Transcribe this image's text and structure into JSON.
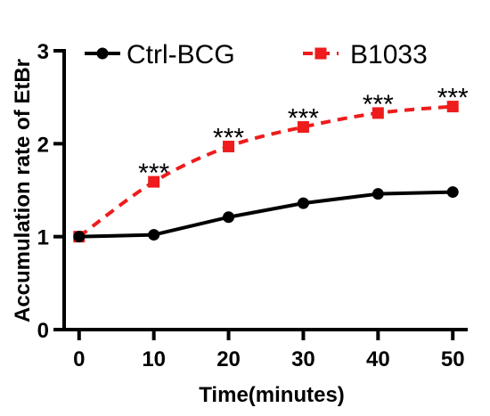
{
  "chart_data": {
    "type": "line",
    "title": "",
    "xlabel": "Time(minutes)",
    "ylabel": "Accumulation rate of EtBr",
    "x": [
      0,
      10,
      20,
      30,
      40,
      50
    ],
    "xlim": [
      -2,
      52
    ],
    "ylim": [
      0,
      3
    ],
    "xticks": [
      "0",
      "10",
      "20",
      "30",
      "40",
      "50"
    ],
    "yticks": [
      "0",
      "1",
      "2",
      "3"
    ],
    "grid": false,
    "legend_position": "top",
    "series": [
      {
        "name": "Ctrl-BCG",
        "values": [
          1.0,
          1.02,
          1.21,
          1.36,
          1.46,
          1.48
        ],
        "color": "#000000",
        "marker": "circle",
        "line_style": "solid"
      },
      {
        "name": "B1033",
        "values": [
          1.0,
          1.59,
          1.97,
          2.18,
          2.33,
          2.4
        ],
        "color": "#ee1c1c",
        "marker": "square",
        "line_style": "dashed"
      }
    ],
    "annotations": [
      {
        "x": 10,
        "text": "***"
      },
      {
        "x": 20,
        "text": "***"
      },
      {
        "x": 30,
        "text": "***"
      },
      {
        "x": 40,
        "text": "***"
      },
      {
        "x": 50,
        "text": "***"
      }
    ]
  }
}
